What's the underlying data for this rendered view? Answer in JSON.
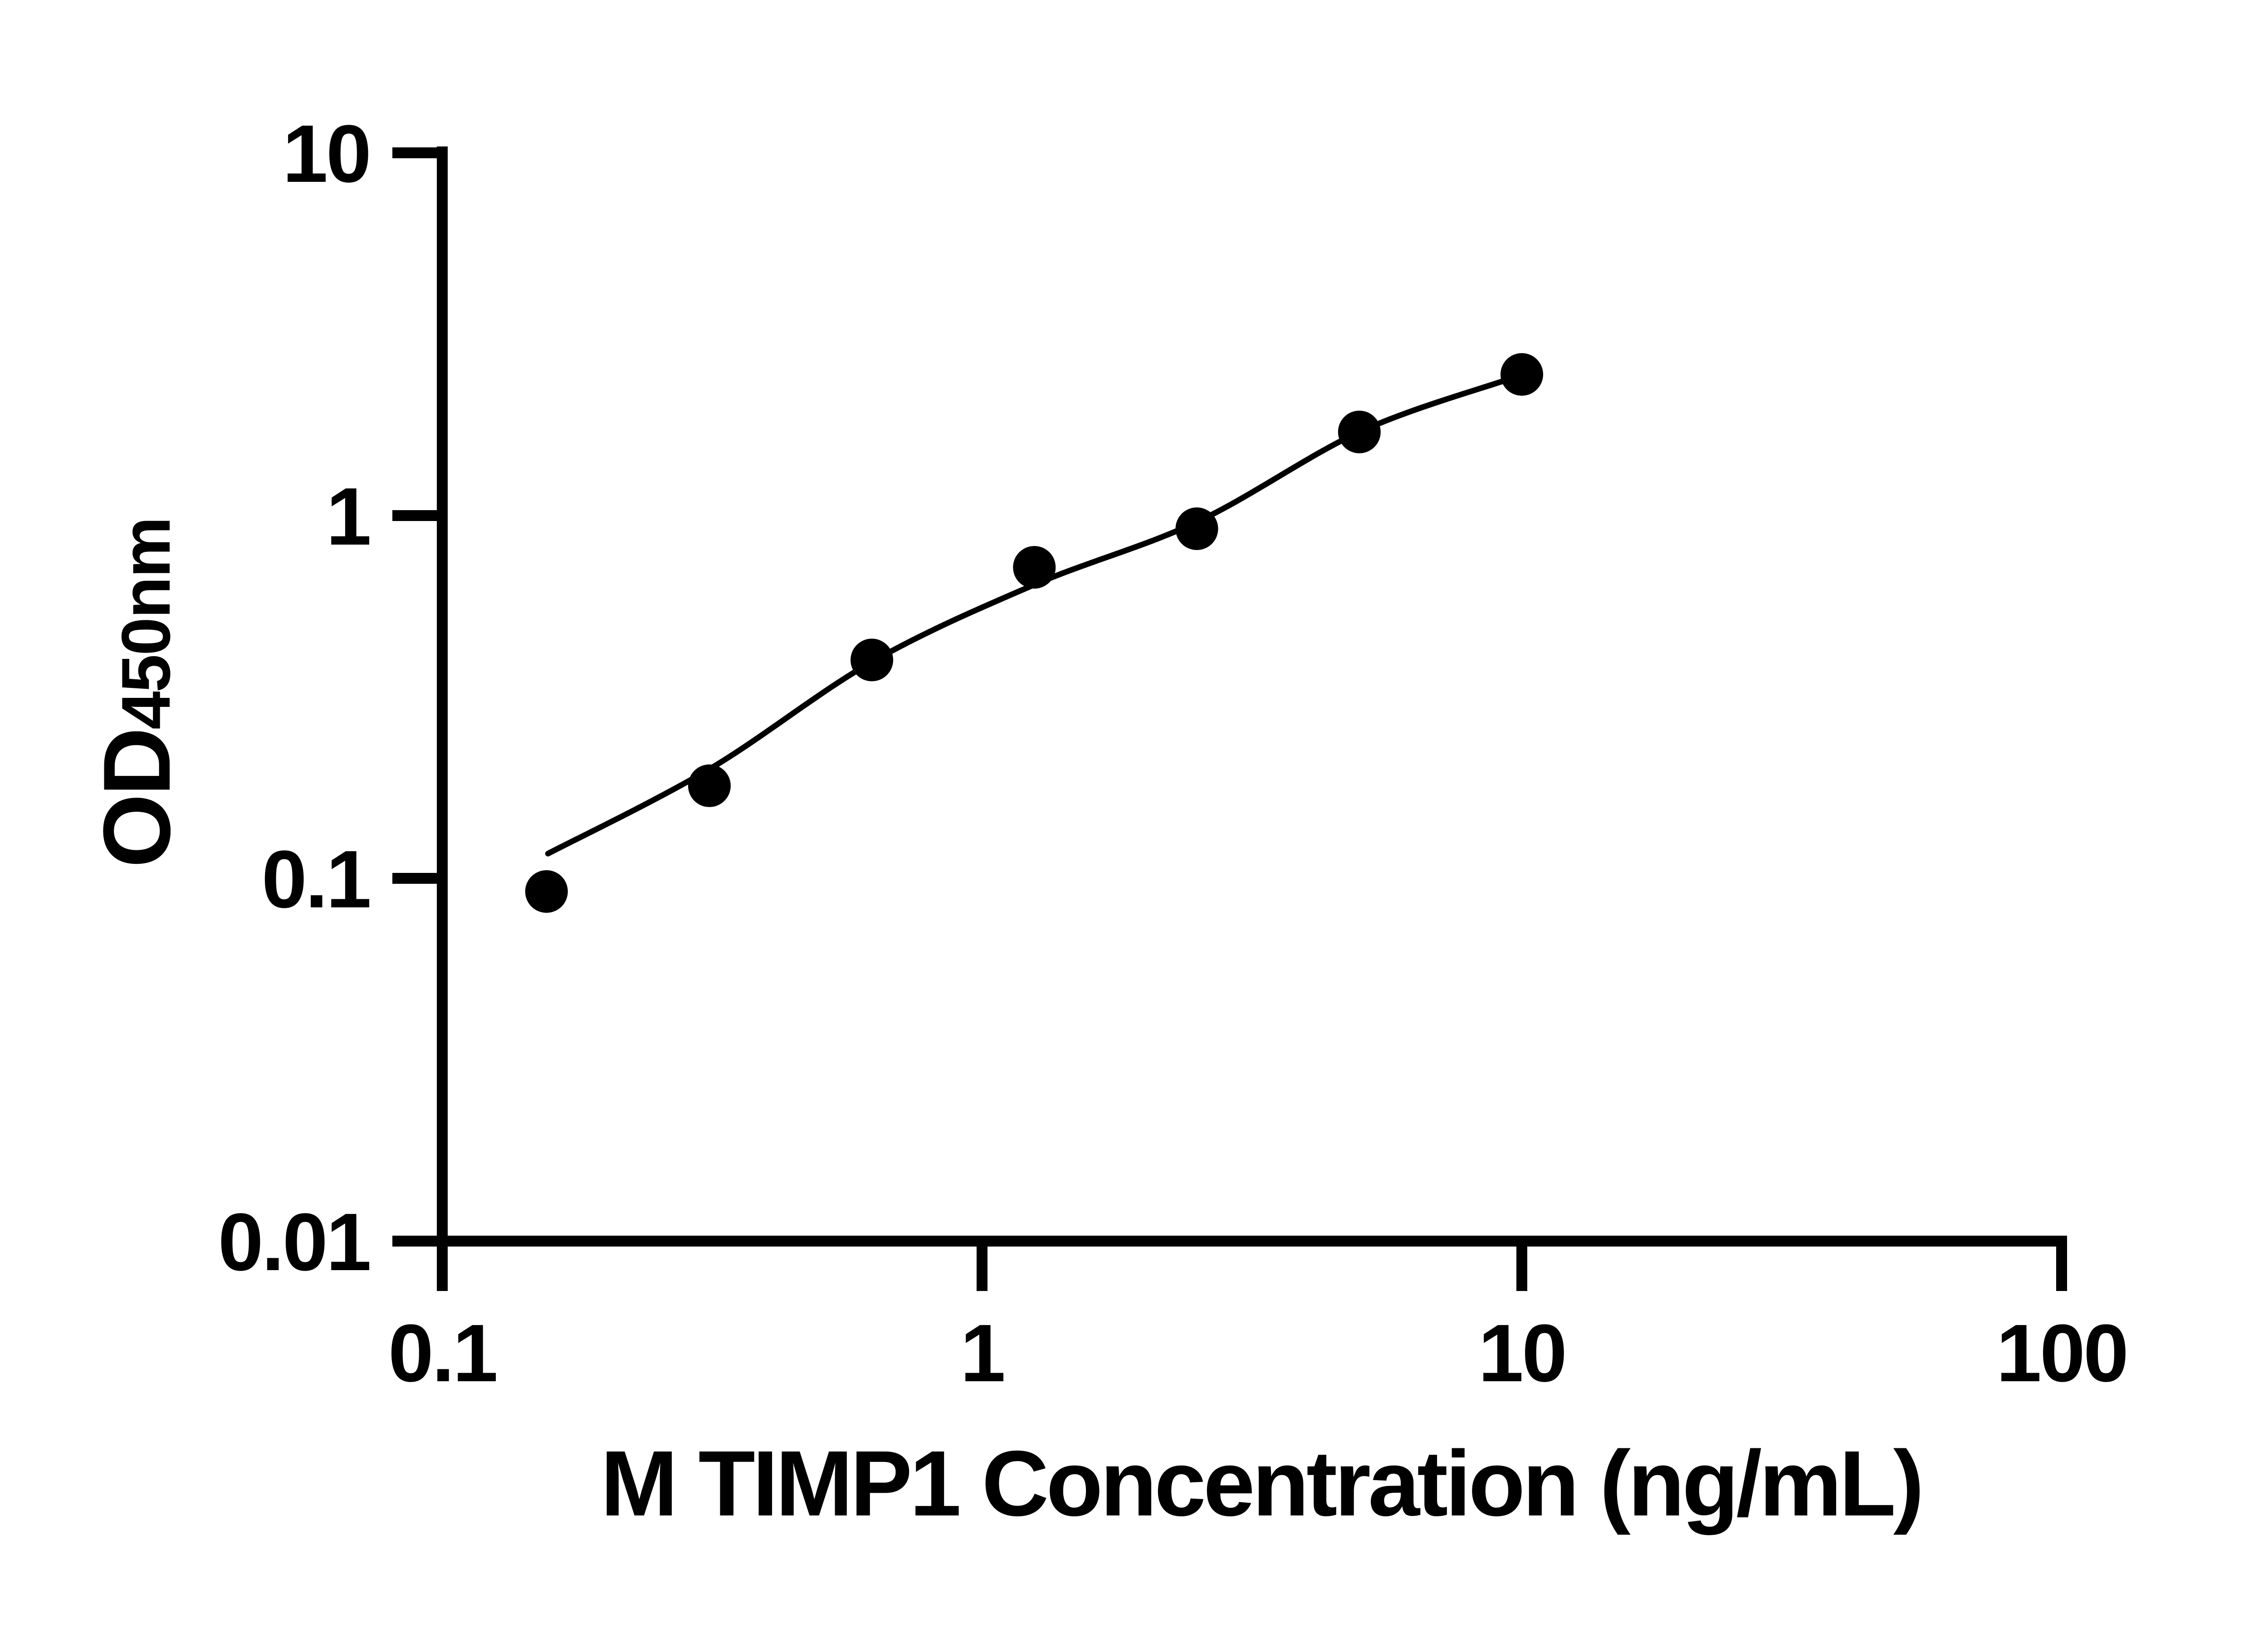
{
  "page": {
    "background_color": "#ffffff"
  },
  "chart_data": {
    "type": "scatter",
    "description": "ELISA standard curve: filled circle data points with fitted smooth curve on log-log axes",
    "title": "",
    "xlabel": "M TIMP1 Concentration (ng/mL)",
    "ylabel_main": "OD",
    "ylabel_sub": "450nm",
    "x_scale": "log10",
    "y_scale": "log10",
    "xlim": [
      0.1,
      100
    ],
    "ylim": [
      0.01,
      10
    ],
    "x_tick_labels": [
      "0.1",
      "1",
      "10",
      "100"
    ],
    "x_tick_values": [
      0.1,
      1,
      10,
      100
    ],
    "y_tick_labels": [
      "0.01",
      "0.1",
      "1",
      "10"
    ],
    "y_tick_values": [
      0.01,
      0.1,
      1,
      10
    ],
    "grid": false,
    "legend": "none",
    "colors": {
      "axis": "#000000",
      "marker": "#000000",
      "curve": "#000000",
      "background": "#ffffff"
    },
    "points": {
      "x": [
        0.156,
        0.3125,
        0.625,
        1.25,
        2.5,
        5,
        10
      ],
      "y": [
        0.092,
        0.18,
        0.4,
        0.72,
        0.92,
        1.7,
        2.45
      ]
    },
    "fit_curve": {
      "x": [
        0.157,
        0.3125,
        0.625,
        1.25,
        2.5,
        5,
        9.4
      ],
      "y": [
        0.117,
        0.2,
        0.395,
        0.645,
        0.96,
        1.7,
        2.37
      ]
    }
  }
}
